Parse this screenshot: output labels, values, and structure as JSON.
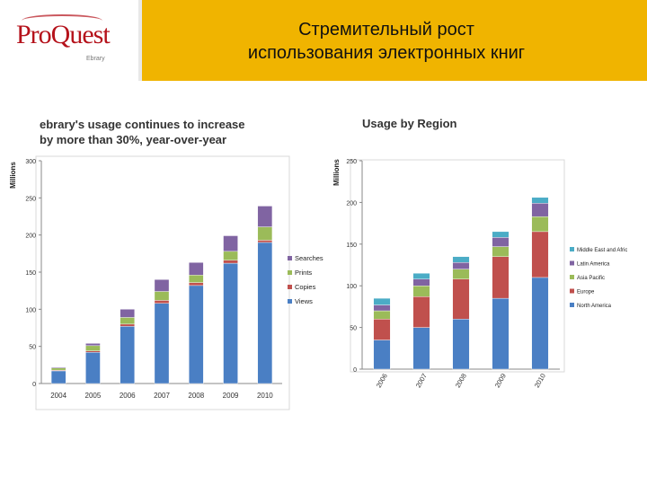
{
  "header": {
    "logo_text": "ProQuest",
    "logo_sub": "Ebrary",
    "title_line1": "Стремительный рост",
    "title_line2": "использования электронных книг"
  },
  "subtitle_left": {
    "line1": "ebrary's usage continues to increase",
    "line2": "by more than 30%, year-over-year"
  },
  "subtitle_right": "Usage by Region",
  "chart_data": [
    {
      "type": "bar",
      "stacked": true,
      "ylabel": "Millions",
      "ylim": [
        0,
        300
      ],
      "yticks": [
        0,
        50,
        100,
        150,
        200,
        250,
        300
      ],
      "categories": [
        "2004",
        "2005",
        "2006",
        "2007",
        "2008",
        "2009",
        "2010"
      ],
      "series": [
        {
          "name": "Views",
          "color": "#4a7fc4",
          "values": [
            17,
            42,
            77,
            108,
            132,
            162,
            190
          ]
        },
        {
          "name": "Copies",
          "color": "#c0504d",
          "values": [
            1,
            2,
            3,
            4,
            4,
            4,
            3
          ]
        },
        {
          "name": "Prints",
          "color": "#9bbb59",
          "values": [
            3,
            7,
            9,
            12,
            10,
            12,
            18
          ]
        },
        {
          "name": "Searches",
          "color": "#8064a2",
          "values": [
            1,
            3,
            11,
            16,
            17,
            21,
            28
          ]
        }
      ],
      "legend": "right",
      "grid": false
    },
    {
      "type": "bar",
      "stacked": true,
      "ylabel": "Millions",
      "ylim": [
        0,
        250
      ],
      "yticks": [
        0,
        50,
        100,
        150,
        200,
        250
      ],
      "categories": [
        "2006",
        "2007",
        "2008",
        "2009",
        "2010"
      ],
      "series": [
        {
          "name": "North America",
          "color": "#4a7fc4",
          "values": [
            35,
            50,
            60,
            85,
            110
          ]
        },
        {
          "name": "Europe",
          "color": "#c0504d",
          "values": [
            25,
            37,
            48,
            50,
            55
          ]
        },
        {
          "name": "Asia Pacific",
          "color": "#9bbb59",
          "values": [
            10,
            13,
            12,
            12,
            18
          ]
        },
        {
          "name": "Latin America",
          "color": "#8064a2",
          "values": [
            7,
            8,
            8,
            11,
            16
          ]
        },
        {
          "name": "Middle East and Africa",
          "color": "#4bacc6",
          "values": [
            8,
            7,
            7,
            7,
            7
          ]
        }
      ],
      "legend": "right",
      "grid": false,
      "xtick_rotation": -60
    }
  ]
}
